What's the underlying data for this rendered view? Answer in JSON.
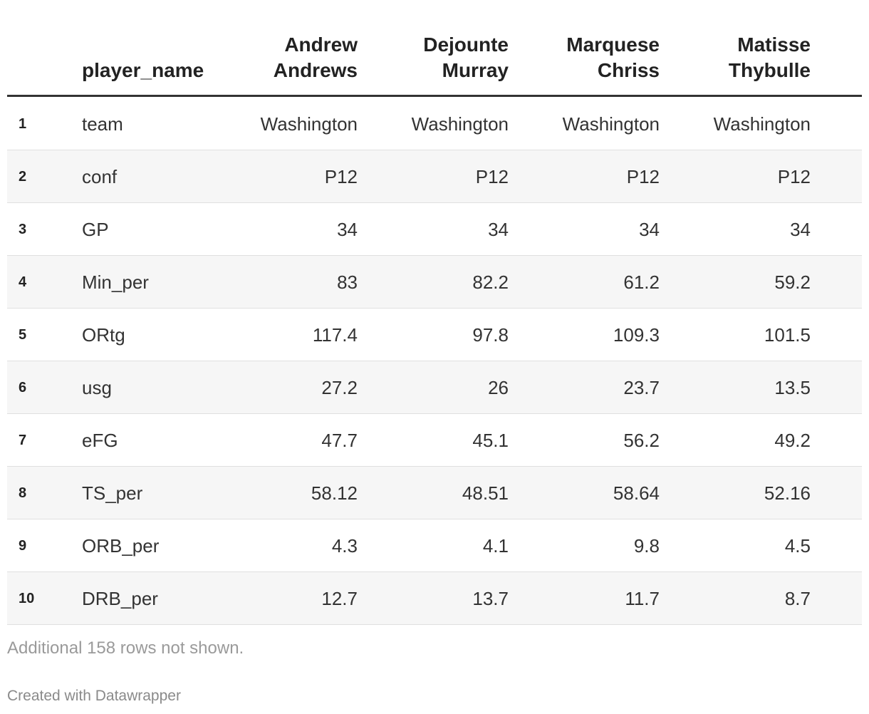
{
  "table": {
    "columns": [
      "player_name",
      "Andrew Andrews",
      "Dejounte Murray",
      "Marquese Chriss",
      "Matisse Thybulle"
    ],
    "rows": [
      [
        "1",
        "team",
        "Washington",
        "Washington",
        "Washington",
        "Washington"
      ],
      [
        "2",
        "conf",
        "P12",
        "P12",
        "P12",
        "P12"
      ],
      [
        "3",
        "GP",
        "34",
        "34",
        "34",
        "34"
      ],
      [
        "4",
        "Min_per",
        "83",
        "82.2",
        "61.2",
        "59.2"
      ],
      [
        "5",
        "ORtg",
        "117.4",
        "97.8",
        "109.3",
        "101.5"
      ],
      [
        "6",
        "usg",
        "27.2",
        "26",
        "23.7",
        "13.5"
      ],
      [
        "7",
        "eFG",
        "47.7",
        "45.1",
        "56.2",
        "49.2"
      ],
      [
        "8",
        "TS_per",
        "58.12",
        "48.51",
        "58.64",
        "52.16"
      ],
      [
        "9",
        "ORB_per",
        "4.3",
        "4.1",
        "9.8",
        "4.5"
      ],
      [
        "10",
        "DRB_per",
        "12.7",
        "13.7",
        "11.7",
        "8.7"
      ]
    ]
  },
  "notes": "Additional 158 rows not shown.",
  "footer": "Created with Datawrapper"
}
